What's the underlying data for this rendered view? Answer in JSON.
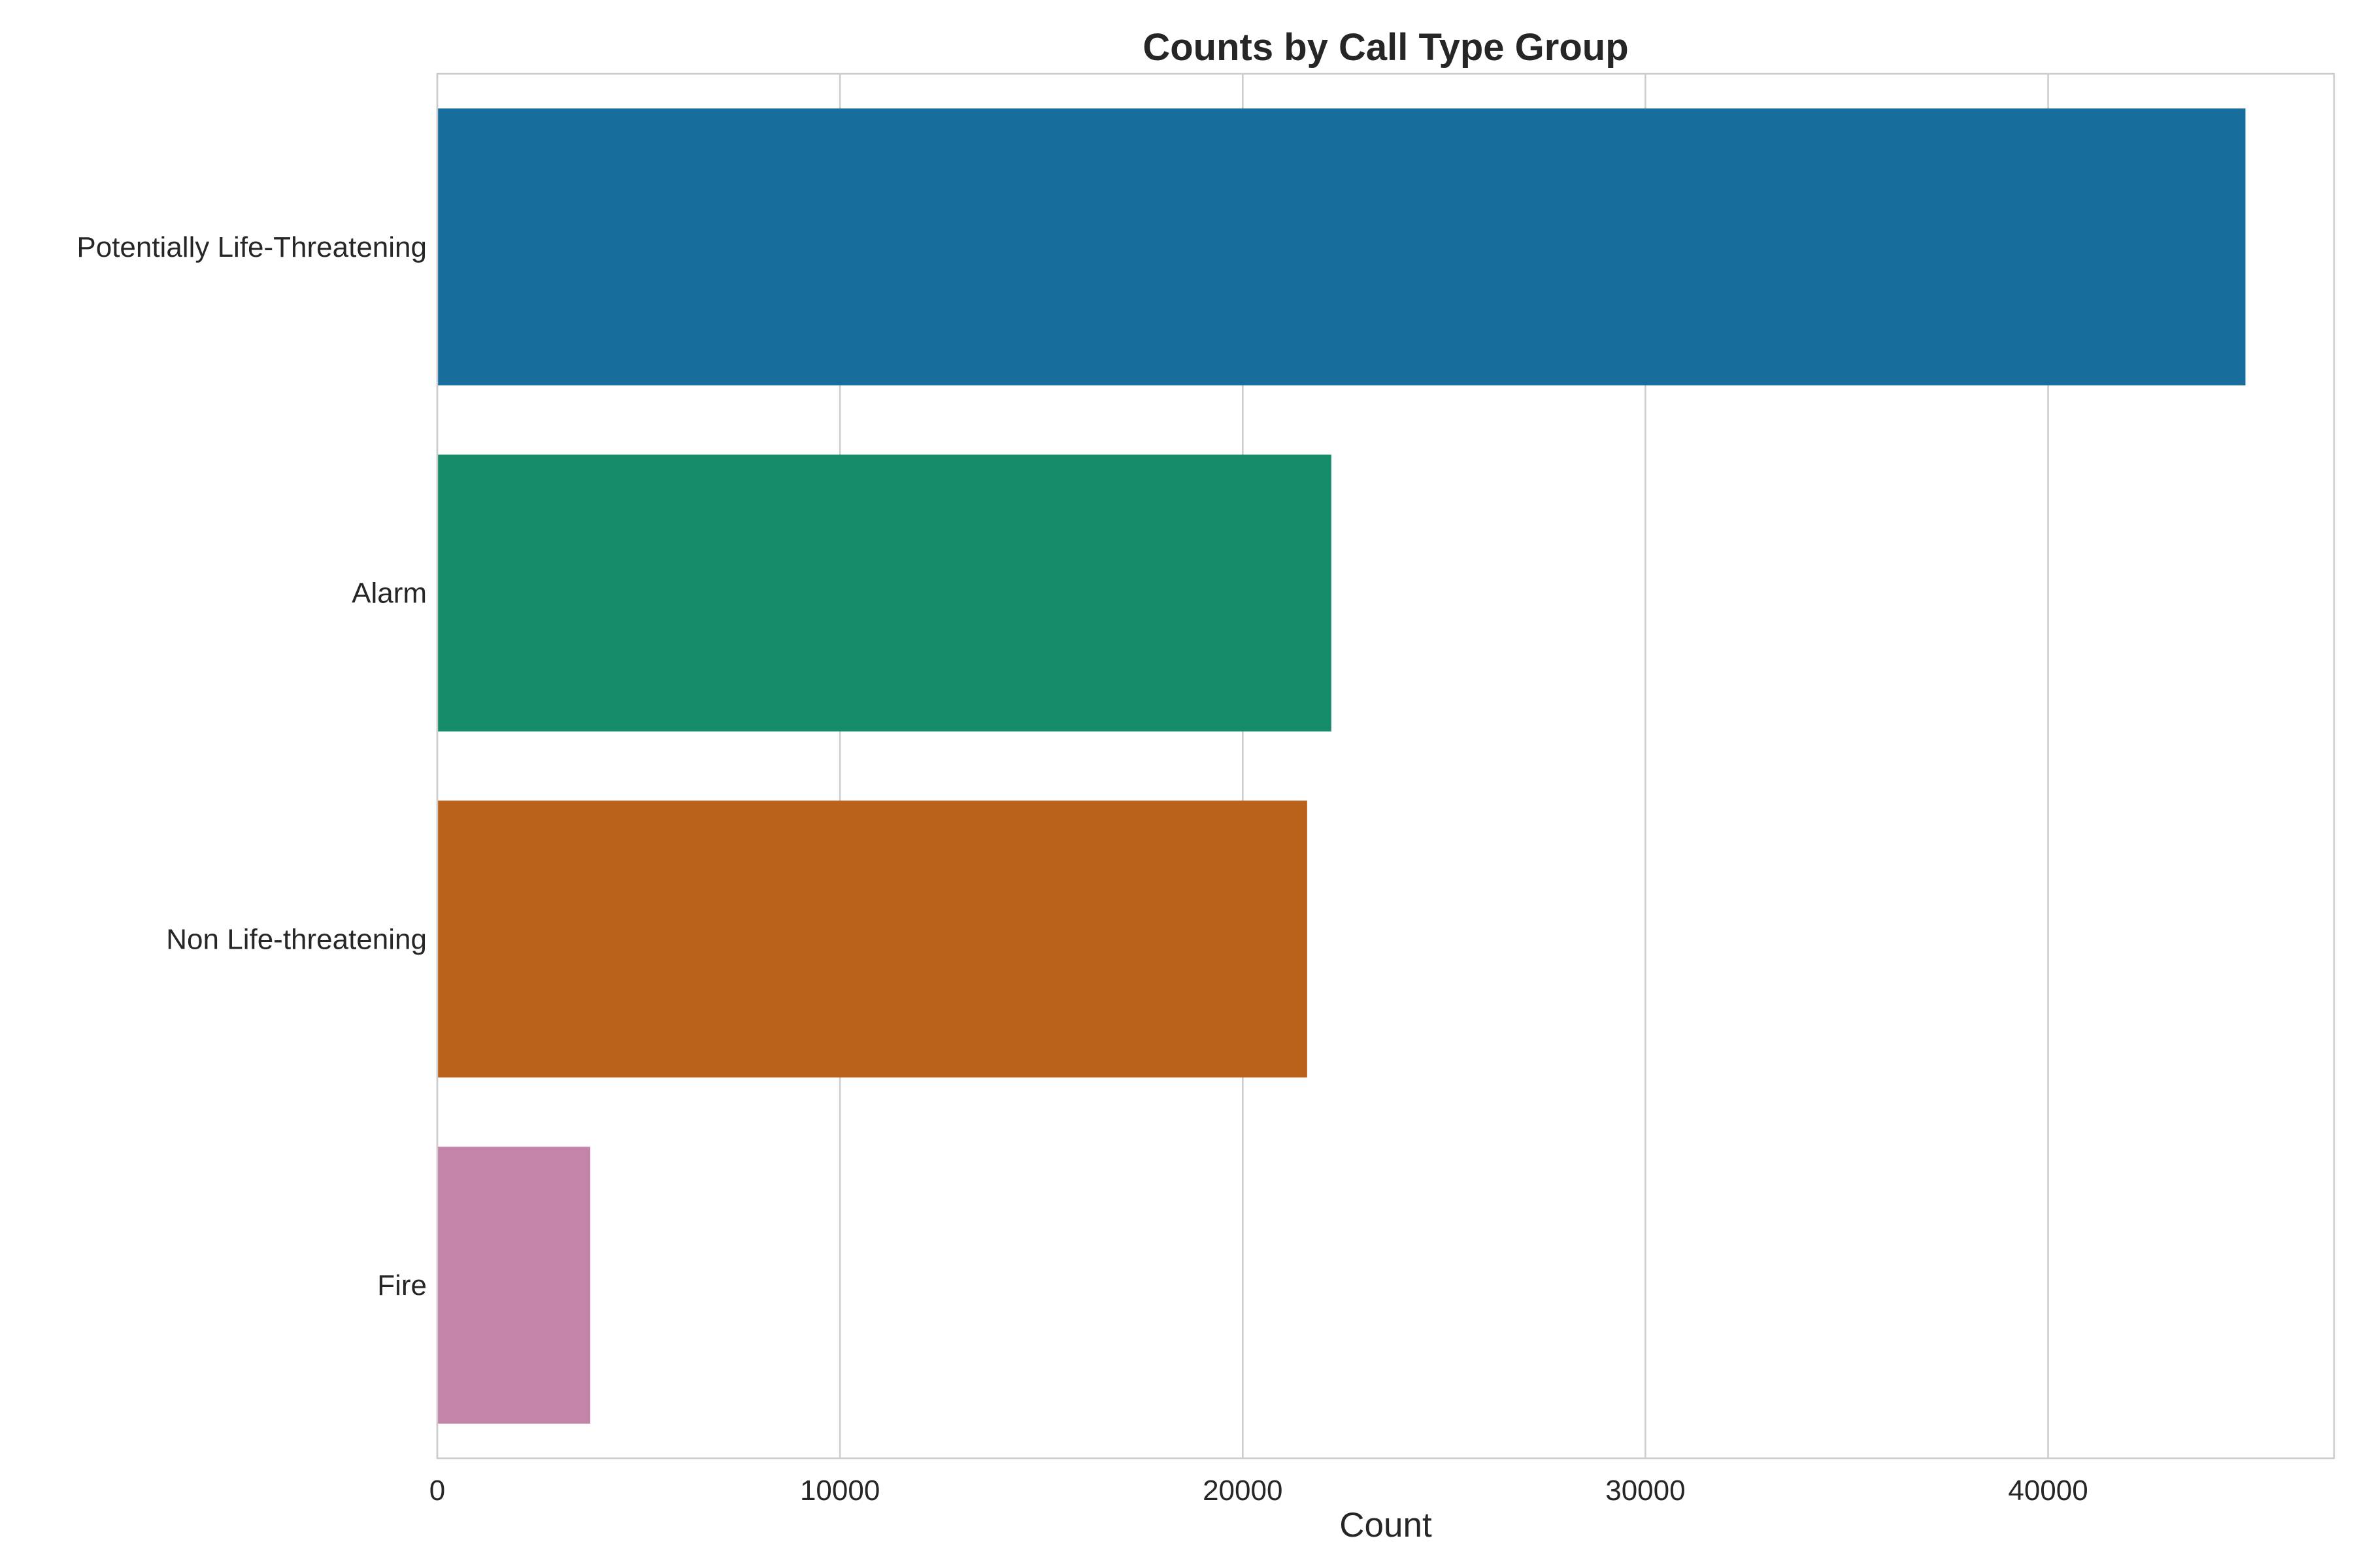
{
  "chart_data": {
    "type": "bar",
    "orientation": "horizontal",
    "title": "Counts by Call Type Group",
    "xlabel": "Count",
    "ylabel": "",
    "categories": [
      "Potentially Life-Threatening",
      "Alarm",
      "Non Life-threatening",
      "Fire"
    ],
    "values": [
      44900,
      22200,
      21600,
      3800
    ],
    "colors": [
      "#176d9c",
      "#158b6a",
      "#ba611b",
      "#c384a7"
    ],
    "xlim": [
      0,
      47100
    ],
    "xticks": [
      0,
      10000,
      20000,
      30000,
      40000
    ],
    "grid": true,
    "legend": "none"
  }
}
